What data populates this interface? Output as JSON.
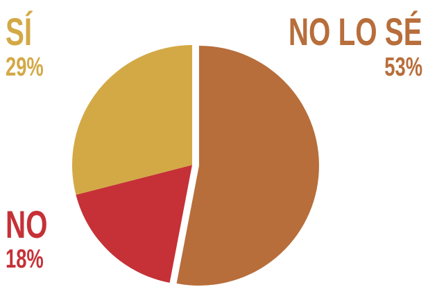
{
  "chart_data": {
    "type": "pie",
    "categories": [
      "NO LO SÉ",
      "NO",
      "SÍ"
    ],
    "values": [
      53,
      18,
      29
    ],
    "value_labels": [
      "53%",
      "18%",
      "29%"
    ],
    "colors": [
      "#b76e3b",
      "#c53137",
      "#d3a946"
    ],
    "title": "",
    "legend": "none",
    "start_angle": "12 o'clock, clockwise",
    "exploded": [
      "NO LO SÉ"
    ]
  }
}
